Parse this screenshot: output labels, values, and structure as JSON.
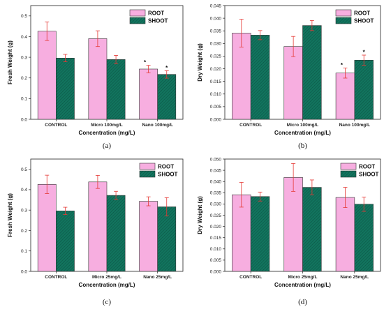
{
  "colors": {
    "root": "#f7aee0",
    "shoot": "#12745e",
    "error": "#e53935",
    "axis": "#222222"
  },
  "chart_data": [
    {
      "type": "bar",
      "panel_label": "(a)",
      "categories": [
        "CONTROL",
        "Micro 100mg/L",
        "Nano 100mg/L"
      ],
      "series": [
        {
          "name": "ROOT",
          "values": [
            0.426,
            0.39,
            0.243
          ],
          "errors": [
            0.045,
            0.038,
            0.018
          ]
        },
        {
          "name": "SHOOT",
          "values": [
            0.296,
            0.289,
            0.217
          ],
          "errors": [
            0.018,
            0.02,
            0.018
          ]
        }
      ],
      "significance": [
        "",
        "",
        "*"
      ],
      "xlabel": "Concentration (mg/L)",
      "ylabel": "Fresh Weight (g)",
      "ylim": [
        0,
        0.55
      ],
      "yticks": [
        0.0,
        0.1,
        0.2,
        0.3,
        0.4,
        0.5
      ],
      "ytick_labels": [
        "0.0",
        "0.1",
        "0.2",
        "0.3",
        "0.4",
        "0.5"
      ],
      "legend": "top-right",
      "grid": false
    },
    {
      "type": "bar",
      "panel_label": "(b)",
      "categories": [
        "CONTROL",
        "Micro 100mg/L",
        "Nano 100mg/L"
      ],
      "series": [
        {
          "name": "ROOT",
          "values": [
            0.0341,
            0.0288,
            0.0183
          ],
          "errors": [
            0.0055,
            0.004,
            0.002
          ]
        },
        {
          "name": "SHOOT",
          "values": [
            0.0333,
            0.0371,
            0.0234
          ],
          "errors": [
            0.0018,
            0.002,
            0.002
          ]
        }
      ],
      "significance": [
        "",
        "",
        "*"
      ],
      "xlabel": "Concentration (mg/L)",
      "ylabel": "Dry Weight (g)",
      "ylim": [
        0,
        0.045
      ],
      "yticks": [
        0,
        0.005,
        0.01,
        0.015,
        0.02,
        0.025,
        0.03,
        0.035,
        0.04,
        0.045
      ],
      "ytick_labels": [
        "0.000",
        "0.005",
        "0.010",
        "0.015",
        "0.020",
        "0.025",
        "0.030",
        "0.035",
        "0.040",
        "0.045"
      ],
      "legend": "top-right",
      "grid": false
    },
    {
      "type": "bar",
      "panel_label": "(c)",
      "categories": [
        "CONTROL",
        "Micro 25mg/L",
        "Nano 25mg/L"
      ],
      "series": [
        {
          "name": "ROOT",
          "values": [
            0.426,
            0.438,
            0.343
          ],
          "errors": [
            0.045,
            0.032,
            0.022
          ]
        },
        {
          "name": "SHOOT",
          "values": [
            0.296,
            0.372,
            0.316
          ],
          "errors": [
            0.018,
            0.02,
            0.045
          ]
        }
      ],
      "significance": [
        "",
        "",
        ""
      ],
      "xlabel": "Concentration (mg/L)",
      "ylabel": "Fresh Weight (g)",
      "ylim": [
        0,
        0.55
      ],
      "yticks": [
        0.0,
        0.1,
        0.2,
        0.3,
        0.4,
        0.5
      ],
      "ytick_labels": [
        "0.0",
        "0.1",
        "0.2",
        "0.3",
        "0.4",
        "0.5"
      ],
      "legend": "top-right",
      "grid": false
    },
    {
      "type": "bar",
      "panel_label": "(d)",
      "categories": [
        "CONTROL",
        "Micro 25mg/L",
        "Nano 25mg/L"
      ],
      "series": [
        {
          "name": "ROOT",
          "values": [
            0.0341,
            0.0418,
            0.0329
          ],
          "errors": [
            0.0055,
            0.0062,
            0.0045
          ]
        },
        {
          "name": "SHOOT",
          "values": [
            0.0333,
            0.0374,
            0.0299
          ],
          "errors": [
            0.002,
            0.0033,
            0.0032
          ]
        }
      ],
      "significance": [
        "",
        "",
        ""
      ],
      "xlabel": "Concentration (mg/L)",
      "ylabel": "Dry Weight (g)",
      "ylim": [
        0,
        0.05
      ],
      "yticks": [
        0,
        0.005,
        0.01,
        0.015,
        0.02,
        0.025,
        0.03,
        0.035,
        0.04,
        0.045,
        0.05
      ],
      "ytick_labels": [
        "0.000",
        "0.005",
        "0.010",
        "0.015",
        "0.020",
        "0.025",
        "0.030",
        "0.035",
        "0.040",
        "0.045",
        "0.050"
      ],
      "legend": "top-right",
      "grid": false
    }
  ]
}
